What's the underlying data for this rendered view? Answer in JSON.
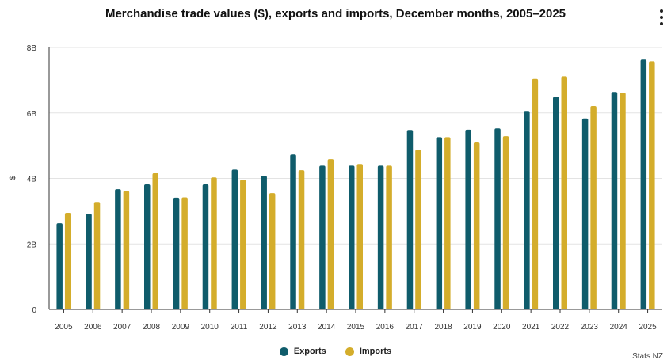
{
  "header": {
    "title": "Merchandise trade values ($), exports and imports, December months, 2005–2025"
  },
  "menu": {
    "icon": "more-vertical-icon"
  },
  "credit": "Stats NZ",
  "colors": {
    "exports": "#0f5c6b",
    "imports": "#d4ad2b",
    "grid": "#e3e3e3",
    "axis": "#333333"
  },
  "chart_data": {
    "type": "bar",
    "title": "Merchandise trade values ($), exports and imports, December months, 2005–2025",
    "xlabel": "",
    "ylabel": "$",
    "ylim": [
      0,
      8000000000
    ],
    "yticks": [
      {
        "value": 0,
        "label": "0"
      },
      {
        "value": 2000000000,
        "label": "2B"
      },
      {
        "value": 4000000000,
        "label": "4B"
      },
      {
        "value": 6000000000,
        "label": "6B"
      },
      {
        "value": 8000000000,
        "label": "8B"
      }
    ],
    "grid": true,
    "legend_position": "bottom",
    "categories": [
      "2005",
      "2006",
      "2007",
      "2008",
      "2009",
      "2010",
      "2011",
      "2012",
      "2013",
      "2014",
      "2015",
      "2016",
      "2017",
      "2018",
      "2019",
      "2020",
      "2021",
      "2022",
      "2023",
      "2024",
      "2025"
    ],
    "series": [
      {
        "name": "Exports",
        "color": "#0f5c6b",
        "values": [
          2630000000,
          2920000000,
          3670000000,
          3820000000,
          3410000000,
          3820000000,
          4270000000,
          4080000000,
          4730000000,
          4390000000,
          4390000000,
          4390000000,
          5480000000,
          5260000000,
          5490000000,
          5530000000,
          6060000000,
          6490000000,
          5830000000,
          6640000000,
          7630000000
        ]
      },
      {
        "name": "Imports",
        "color": "#d4ad2b",
        "values": [
          2950000000,
          3280000000,
          3620000000,
          4160000000,
          3420000000,
          4030000000,
          3960000000,
          3550000000,
          4250000000,
          4590000000,
          4440000000,
          4390000000,
          4880000000,
          5260000000,
          5100000000,
          5290000000,
          7040000000,
          7120000000,
          6210000000,
          6620000000,
          7580000000
        ]
      }
    ]
  }
}
